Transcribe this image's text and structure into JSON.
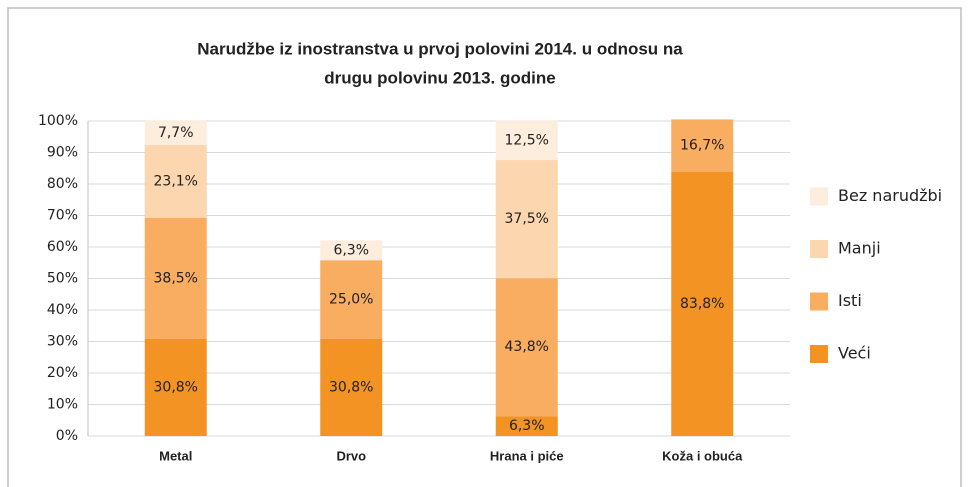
{
  "chart_data": {
    "type": "stacked_bar",
    "title": [
      "Narudžbe iz inostranstva u prvoj polovini 2014. u odnosu na",
      "drugu polovinu 2013. godine"
    ],
    "categories": [
      "Metal",
      "Drvo",
      "Hrana i piće",
      "Koža i obuća"
    ],
    "series": [
      {
        "name": "Veći",
        "color": "#f39323",
        "values": [
          30.8,
          30.8,
          6.3,
          83.8
        ],
        "value_labels": [
          "30,8%",
          "30,8%",
          "6,3%",
          "83,8%"
        ]
      },
      {
        "name": "Isti",
        "color": "#f8ad61",
        "values": [
          38.5,
          25.0,
          43.8,
          16.7
        ],
        "value_labels": [
          "38,5%",
          "25,0%",
          "43,8%",
          "16,7%"
        ]
      },
      {
        "name": "Manji",
        "color": "#fcd6af",
        "values": [
          23.1,
          null,
          37.5,
          null
        ],
        "value_labels": [
          "23,1%",
          null,
          "37,5%",
          null
        ]
      },
      {
        "name": "Bez narudžbi",
        "color": "#fdeddc",
        "values": [
          7.7,
          6.3,
          12.5,
          null
        ],
        "value_labels": [
          "7,7%",
          "6,3%",
          "12,5%",
          null
        ]
      }
    ],
    "ylim": [
      0,
      100
    ],
    "yticks": [
      {
        "value": 0,
        "label": "0%"
      },
      {
        "value": 10,
        "label": "10%"
      },
      {
        "value": 20,
        "label": "20%"
      },
      {
        "value": 30,
        "label": "30%"
      },
      {
        "value": 40,
        "label": "40%"
      },
      {
        "value": 50,
        "label": "50%"
      },
      {
        "value": 60,
        "label": "60%"
      },
      {
        "value": 70,
        "label": "70%"
      },
      {
        "value": 80,
        "label": "80%"
      },
      {
        "value": 90,
        "label": "90%"
      },
      {
        "value": 100,
        "label": "100%"
      }
    ],
    "grid": true,
    "legend": "right"
  }
}
